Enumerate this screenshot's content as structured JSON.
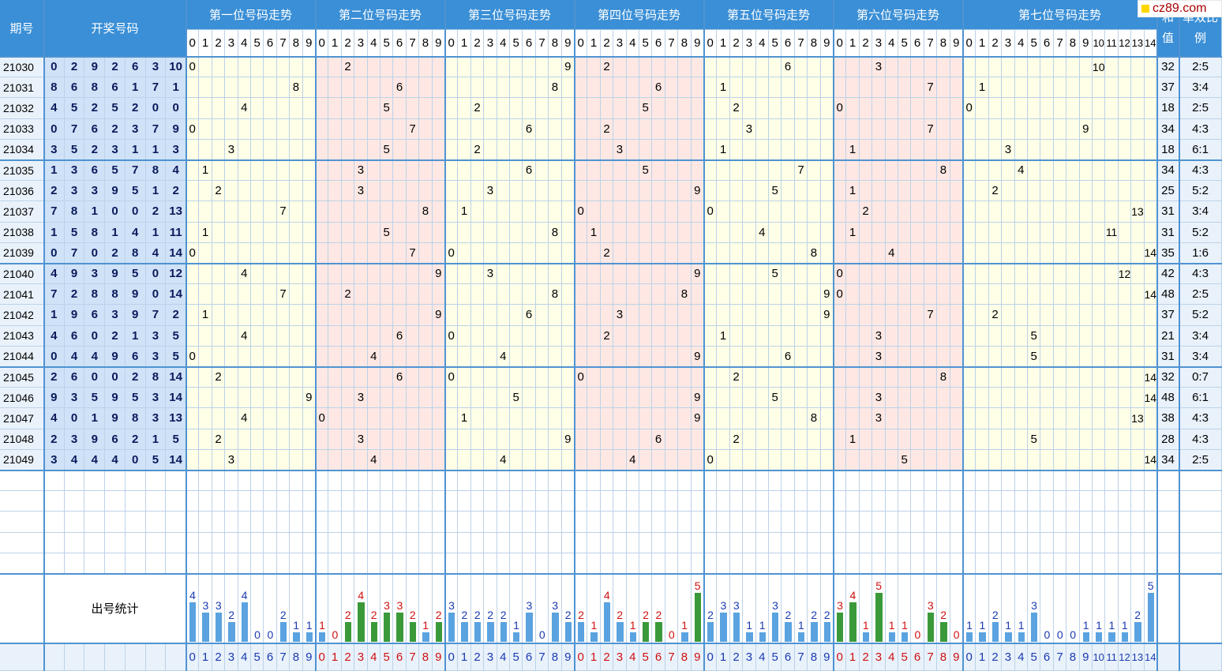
{
  "header": {
    "period_label": "期号",
    "draw_label": "开奖号码",
    "positions": [
      "第一位号码走势",
      "第二位号码走势",
      "第三位号码走势",
      "第四位号码走势",
      "第五位号码走势",
      "第六位号码走势",
      "第七位号码走势"
    ],
    "sum_label": "和值",
    "ratio_label": "单双比例"
  },
  "logo": {
    "text": "cz89.com"
  },
  "colors": {
    "header_bg": "#3a8fd6",
    "draw_bg": "#cfe2f7",
    "yellow_zone": "#ffffe8",
    "pink_zone": "#ffe8e4",
    "bar_blue": "#5aa3e0",
    "bar_green": "#3a9a3a",
    "label_blue": "#1a3ab0",
    "label_red": "#d01010"
  },
  "stats_label": "出号统计",
  "chart_data": {
    "type": "table",
    "periods": [
      "21030",
      "21031",
      "21032",
      "21033",
      "21034",
      "21035",
      "21036",
      "21037",
      "21038",
      "21039",
      "21040",
      "21041",
      "21042",
      "21043",
      "21044",
      "21045",
      "21046",
      "21047",
      "21048",
      "21049"
    ],
    "draws": [
      [
        0,
        2,
        9,
        2,
        6,
        3,
        10
      ],
      [
        8,
        6,
        8,
        6,
        1,
        7,
        1
      ],
      [
        4,
        5,
        2,
        5,
        2,
        0,
        0
      ],
      [
        0,
        7,
        6,
        2,
        3,
        7,
        9
      ],
      [
        3,
        5,
        2,
        3,
        1,
        1,
        3
      ],
      [
        1,
        3,
        6,
        5,
        7,
        8,
        4
      ],
      [
        2,
        3,
        3,
        9,
        5,
        1,
        2
      ],
      [
        7,
        8,
        1,
        0,
        0,
        2,
        13
      ],
      [
        1,
        5,
        8,
        1,
        4,
        1,
        11
      ],
      [
        0,
        7,
        0,
        2,
        8,
        4,
        14
      ],
      [
        4,
        9,
        3,
        9,
        5,
        0,
        12
      ],
      [
        7,
        2,
        8,
        8,
        9,
        0,
        14
      ],
      [
        1,
        9,
        6,
        3,
        9,
        7,
        2
      ],
      [
        4,
        6,
        0,
        2,
        1,
        3,
        5
      ],
      [
        0,
        4,
        4,
        9,
        6,
        3,
        5
      ],
      [
        2,
        6,
        0,
        0,
        2,
        8,
        14
      ],
      [
        9,
        3,
        5,
        9,
        5,
        3,
        14
      ],
      [
        4,
        0,
        1,
        9,
        8,
        3,
        13
      ],
      [
        2,
        3,
        9,
        6,
        2,
        1,
        5
      ],
      [
        3,
        4,
        4,
        4,
        0,
        5,
        14
      ]
    ],
    "sums": [
      32,
      37,
      18,
      34,
      18,
      34,
      25,
      31,
      31,
      35,
      42,
      48,
      37,
      21,
      31,
      32,
      48,
      38,
      28,
      34
    ],
    "ratios": [
      "2:5",
      "3:4",
      "2:5",
      "4:3",
      "6:1",
      "4:3",
      "5:2",
      "3:4",
      "5:2",
      "1:6",
      "4:3",
      "2:5",
      "5:2",
      "3:4",
      "3:4",
      "0:7",
      "6:1",
      "4:3",
      "4:3",
      "2:5"
    ],
    "stats": [
      [
        4,
        3,
        3,
        2,
        4,
        0,
        0,
        2,
        1,
        1
      ],
      [
        1,
        0,
        2,
        4,
        2,
        3,
        3,
        2,
        1,
        2
      ],
      [
        3,
        2,
        2,
        2,
        2,
        1,
        3,
        0,
        3,
        2
      ],
      [
        2,
        1,
        4,
        2,
        1,
        2,
        2,
        0,
        1,
        5
      ],
      [
        2,
        3,
        3,
        1,
        1,
        3,
        2,
        1,
        2,
        2
      ],
      [
        3,
        4,
        1,
        5,
        1,
        1,
        0,
        3,
        2,
        0
      ],
      [
        1,
        1,
        2,
        1,
        1,
        3,
        0,
        0,
        0,
        1,
        1,
        1,
        1,
        2,
        5
      ]
    ]
  }
}
